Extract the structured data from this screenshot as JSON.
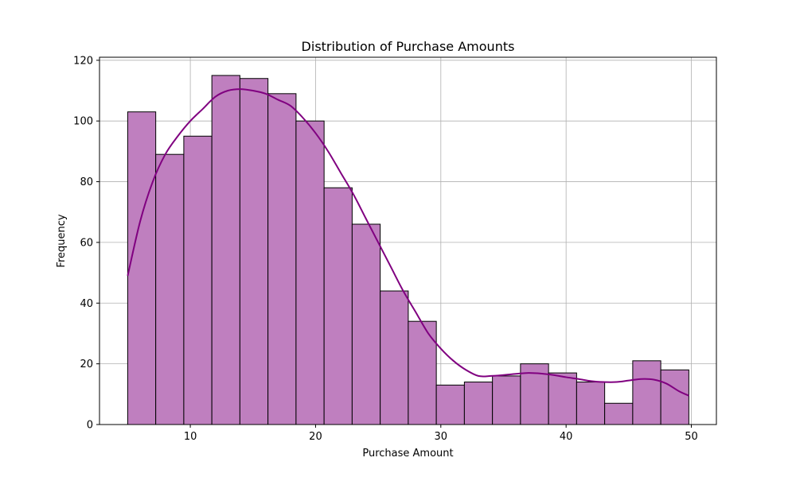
{
  "chart_data": {
    "type": "bar",
    "title": "Distribution of Purchase Amounts",
    "xlabel": "Purchase Amount",
    "ylabel": "Frequency",
    "xlim": [
      2.75,
      52.0
    ],
    "ylim": [
      0,
      121
    ],
    "x_ticks": [
      10,
      20,
      30,
      40,
      50
    ],
    "y_ticks": [
      0,
      20,
      40,
      60,
      80,
      100,
      120
    ],
    "grid": true,
    "bins": {
      "edges": [
        5.0,
        7.24,
        9.48,
        11.72,
        13.96,
        16.2,
        18.44,
        20.68,
        22.92,
        25.16,
        27.4,
        29.64,
        31.88,
        34.12,
        36.36,
        38.6,
        40.84,
        43.08,
        45.32,
        47.56,
        49.8
      ],
      "counts": [
        103,
        89,
        95,
        115,
        114,
        109,
        100,
        78,
        66,
        44,
        34,
        13,
        14,
        16,
        20,
        17,
        14,
        7,
        21,
        18
      ]
    },
    "kde": {
      "x": [
        5.0,
        6.0,
        7.0,
        8.0,
        9.0,
        10.0,
        11.0,
        12.0,
        13.0,
        14.0,
        15.0,
        16.0,
        17.0,
        18.0,
        19.0,
        20.0,
        21.0,
        22.0,
        23.0,
        24.0,
        25.0,
        26.0,
        27.0,
        28.0,
        29.0,
        30.0,
        31.0,
        32.0,
        33.0,
        34.0,
        35.0,
        36.0,
        37.0,
        38.0,
        39.0,
        40.0,
        41.0,
        42.0,
        43.0,
        44.0,
        45.0,
        46.0,
        47.0,
        48.0,
        49.0,
        49.8
      ],
      "y": [
        49,
        67,
        80,
        89,
        95,
        100,
        104,
        108,
        110,
        110.5,
        110,
        109,
        107,
        105,
        101,
        96,
        90,
        83,
        76,
        68,
        60,
        52,
        44,
        37,
        30,
        25,
        21,
        18,
        16,
        16,
        16.3,
        16.7,
        17,
        16.8,
        16.3,
        15.6,
        15,
        14.3,
        14,
        14,
        14.5,
        15,
        14.8,
        13.5,
        11,
        9.5
      ]
    },
    "colors": {
      "bar_fill": "#bf7fbf",
      "bar_edge": "#000000",
      "kde_line": "#800080",
      "grid": "#b0b0b0"
    }
  }
}
